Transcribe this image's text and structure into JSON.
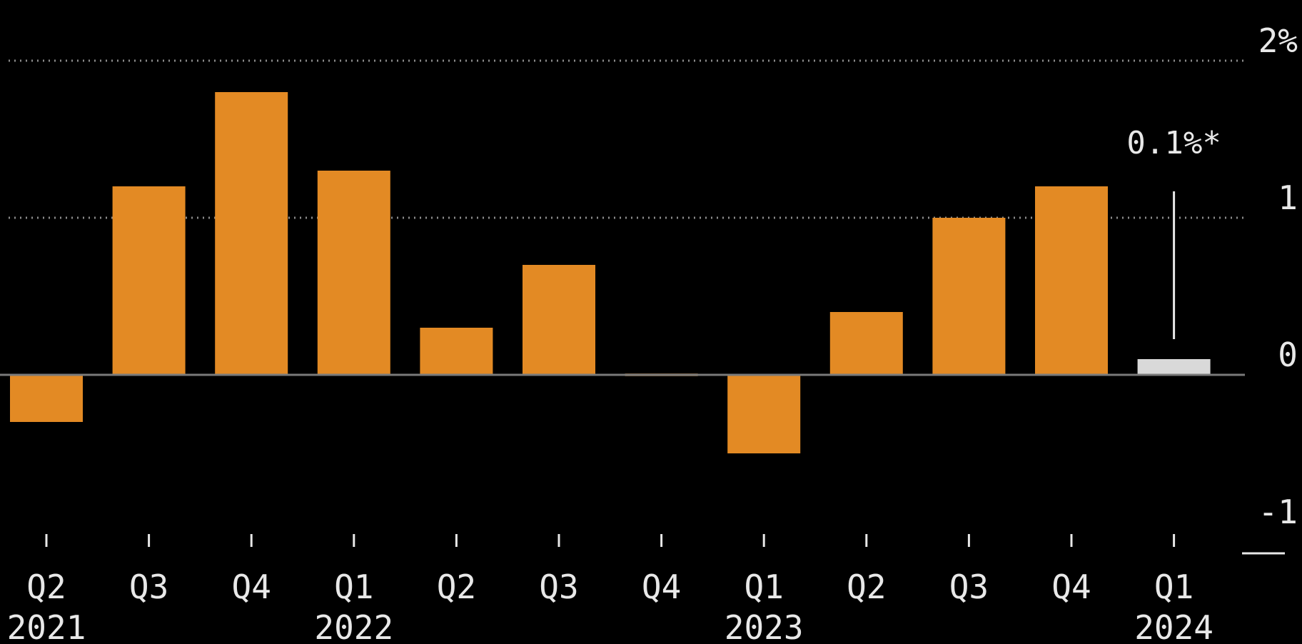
{
  "colors": {
    "background": "#000000",
    "bar": "#e38a24",
    "bar_estimate": "#d9d9d9",
    "grid": "#8c8c8c",
    "text": "#e8e8e8",
    "zero_line": "#7a7a7a"
  },
  "chart_data": {
    "type": "bar",
    "categories": [
      "Q2",
      "Q3",
      "Q4",
      "Q1",
      "Q2",
      "Q3",
      "Q4",
      "Q1",
      "Q2",
      "Q3",
      "Q4",
      "Q1"
    ],
    "period_labels": [
      "2021",
      "",
      "",
      "2022",
      "",
      "",
      "",
      "2023",
      "",
      "",
      "",
      "2024"
    ],
    "values": [
      -0.3,
      1.2,
      1.8,
      1.3,
      0.3,
      0.7,
      0.0,
      -0.5,
      0.4,
      1.0,
      1.2,
      0.1
    ],
    "highlight_index": 11,
    "annotation": {
      "index": 11,
      "text": "0.1%*"
    },
    "ylim": [
      -1,
      2
    ],
    "yticks": [
      {
        "value": 2,
        "label": "2%"
      },
      {
        "value": 1,
        "label": "1"
      },
      {
        "value": 0,
        "label": "0"
      },
      {
        "value": -1,
        "label": "-1"
      }
    ],
    "grid": true,
    "title": "",
    "xlabel": "",
    "ylabel": ""
  }
}
